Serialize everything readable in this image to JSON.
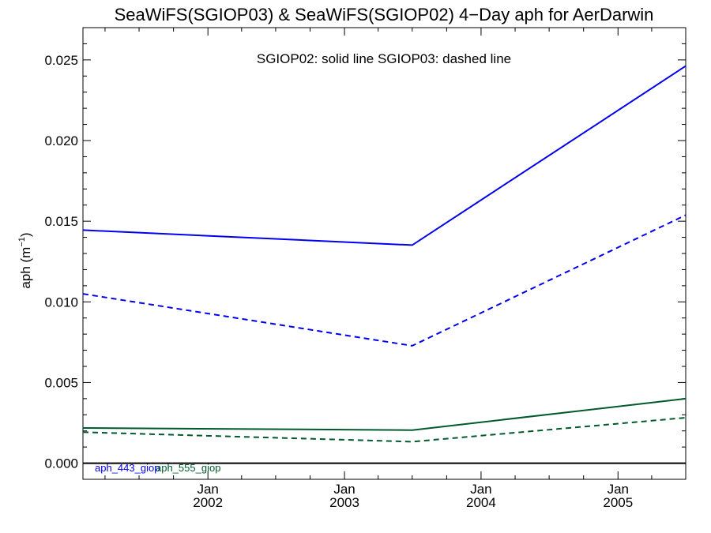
{
  "chart_data": {
    "type": "line",
    "title": "SeaWiFS(SGIOP03) & SeaWiFS(SGIOP02) 4−Day aph for AerDarwin",
    "ylabel": "aph (m",
    "ylabel_sup": "−1",
    "ylabel_close": ")",
    "annotation": "SGIOP02: solid line   SGIOP03: dashed line",
    "ylim": [
      -0.001,
      0.027
    ],
    "xlim": [
      "2001-02-01",
      "2005-07-01"
    ],
    "yticks": [
      {
        "value": 0.0,
        "label": "0.000"
      },
      {
        "value": 0.005,
        "label": "0.005"
      },
      {
        "value": 0.01,
        "label": "0.010"
      },
      {
        "value": 0.015,
        "label": "0.015"
      },
      {
        "value": 0.02,
        "label": "0.020"
      },
      {
        "value": 0.025,
        "label": "0.025"
      }
    ],
    "xticks": [
      {
        "date": "2002-01-01",
        "month": "Jan",
        "year": "2002"
      },
      {
        "date": "2003-01-01",
        "month": "Jan",
        "year": "2003"
      },
      {
        "date": "2004-01-01",
        "month": "Jan",
        "year": "2004"
      },
      {
        "date": "2005-01-01",
        "month": "Jan",
        "year": "2005"
      }
    ],
    "x_minor_months": 3,
    "zero_line": true,
    "series": [
      {
        "name": "aph_443_giop",
        "group": "SGIOP02",
        "color": "#0000ee",
        "style": "solid",
        "x": [
          "2001-02-01",
          "2003-07-01",
          "2005-07-01"
        ],
        "y": [
          0.01445,
          0.01352,
          0.02462
        ]
      },
      {
        "name": "aph_443_giop",
        "group": "SGIOP03",
        "color": "#0000ee",
        "style": "dashed",
        "x": [
          "2001-02-01",
          "2003-07-01",
          "2005-07-01"
        ],
        "y": [
          0.0105,
          0.00728,
          0.01538
        ]
      },
      {
        "name": "aph_555_giop",
        "group": "SGIOP02",
        "color": "#005a2b",
        "style": "solid",
        "x": [
          "2001-02-01",
          "2003-07-01",
          "2005-07-01"
        ],
        "y": [
          0.00218,
          0.00205,
          0.004
        ]
      },
      {
        "name": "aph_555_giop",
        "group": "SGIOP03",
        "color": "#005a2b",
        "style": "dashed",
        "x": [
          "2001-02-01",
          "2003-07-01",
          "2005-07-01"
        ],
        "y": [
          0.00192,
          0.00133,
          0.00282
        ]
      }
    ],
    "legend": [
      {
        "label": "aph_443_giop",
        "color": "#0000ee"
      },
      {
        "label": "aph_555_giop",
        "color": "#005a2b"
      }
    ]
  }
}
